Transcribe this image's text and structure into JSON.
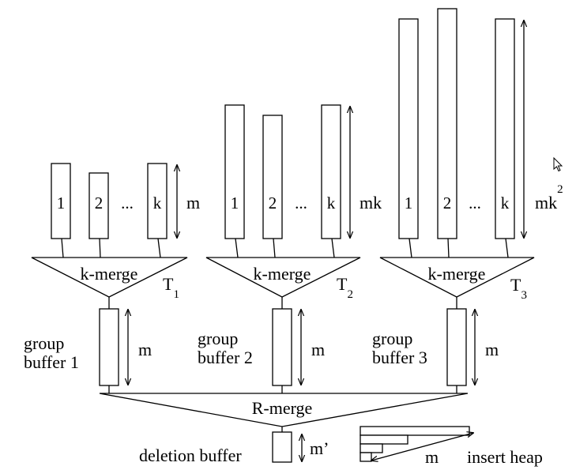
{
  "groups": [
    {
      "run_labels": [
        "1",
        "2",
        "...",
        "k"
      ],
      "run_length_label": "m",
      "merge_label": "k-merge",
      "tree_label": "T",
      "tree_index": "1",
      "buffer_label_line1": "group",
      "buffer_label_line2": "buffer 1",
      "buffer_size_label": "m"
    },
    {
      "run_labels": [
        "1",
        "2",
        "...",
        "k"
      ],
      "run_length_label": "mk",
      "merge_label": "k-merge",
      "tree_label": "T",
      "tree_index": "2",
      "buffer_label_line1": "group",
      "buffer_label_line2": "buffer 2",
      "buffer_size_label": "m"
    },
    {
      "run_labels": [
        "1",
        "2",
        "...",
        "k"
      ],
      "run_length_label": "mk",
      "run_length_exponent": "2",
      "merge_label": "k-merge",
      "tree_label": "T",
      "tree_index": "3",
      "buffer_label_line1": "group",
      "buffer_label_line2": "buffer 3",
      "buffer_size_label": "m"
    }
  ],
  "r_merge_label": "R-merge",
  "deletion_buffer": {
    "label": "deletion buffer",
    "size_label": "m’"
  },
  "insert_heap": {
    "label": "insert heap",
    "size_label": "m"
  },
  "cursor_icon": "mouse-pointer-icon"
}
